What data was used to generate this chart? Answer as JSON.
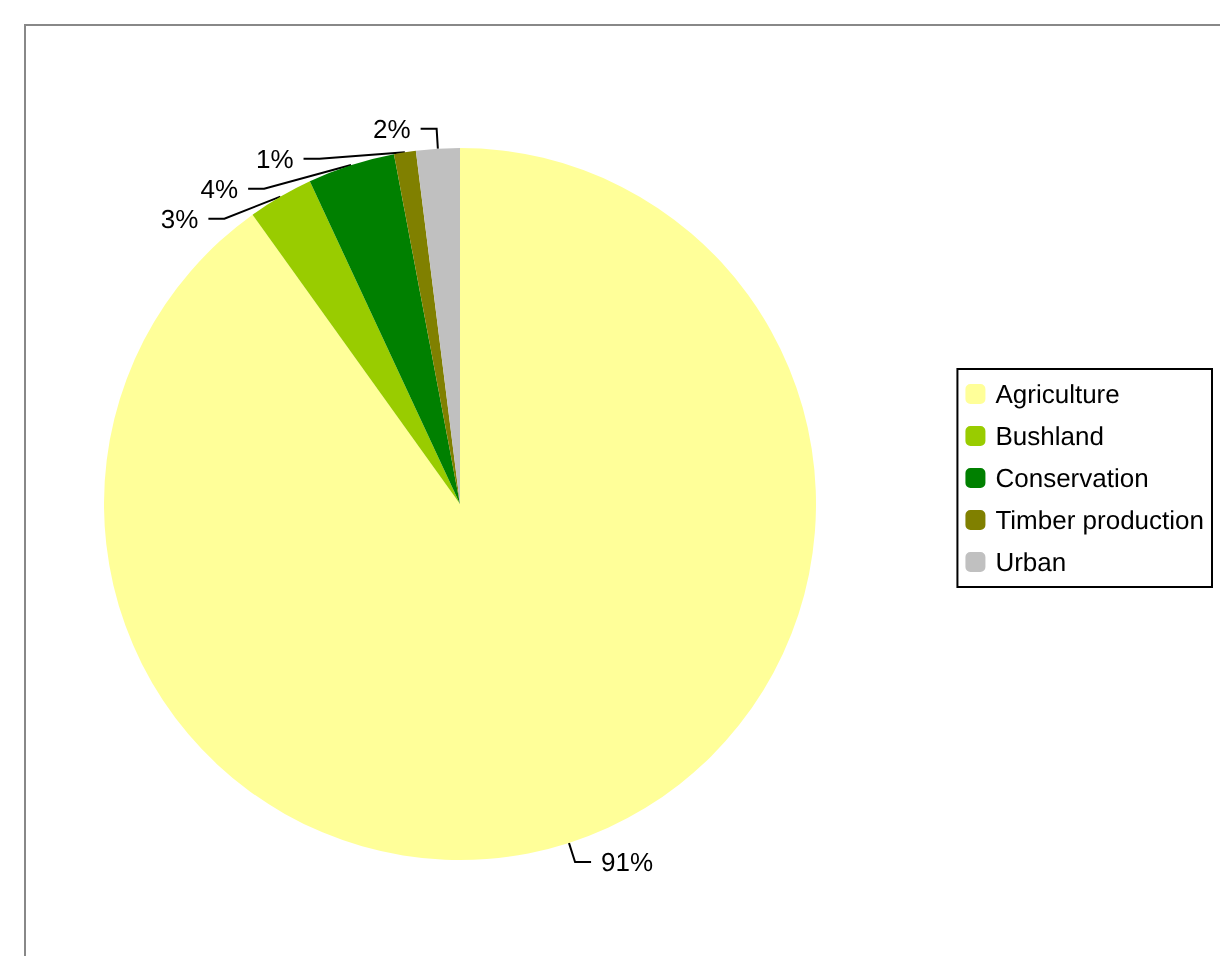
{
  "chart_data": {
    "type": "pie",
    "categories": [
      "Agriculture",
      "Bushland",
      "Conservation",
      "Timber production",
      "Urban"
    ],
    "values": [
      91,
      3,
      4,
      1,
      2
    ],
    "value_labels": [
      "91%",
      "3%",
      "4%",
      "1%",
      "2%"
    ],
    "colors": [
      "#ffff99",
      "#99cc00",
      "#008000",
      "#808000",
      "#c0c0c0"
    ],
    "legend": "right"
  }
}
